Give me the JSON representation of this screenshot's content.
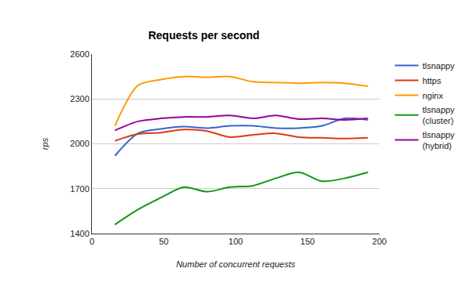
{
  "chart_data": {
    "type": "line",
    "title": "Requests per second",
    "x_label": "Number of concurrent requests",
    "y_label": "rps",
    "x": [
      16,
      32,
      48,
      64,
      80,
      96,
      112,
      128,
      144,
      160,
      176,
      192
    ],
    "series": [
      {
        "name": "tlsnappy",
        "color": "#3366cc",
        "values": [
          1920,
          2070,
          2100,
          2115,
          2105,
          2120,
          2120,
          2105,
          2105,
          2120,
          2170,
          2160
        ]
      },
      {
        "name": "https",
        "color": "#dc3912",
        "values": [
          2020,
          2065,
          2075,
          2095,
          2085,
          2045,
          2060,
          2070,
          2045,
          2040,
          2035,
          2040
        ]
      },
      {
        "name": "nginx",
        "color": "#ff9900",
        "values": [
          2120,
          2390,
          2430,
          2450,
          2445,
          2450,
          2415,
          2410,
          2405,
          2410,
          2405,
          2385
        ]
      },
      {
        "name": "tlsnappy (cluster)",
        "color": "#109618",
        "values": [
          1460,
          1560,
          1640,
          1710,
          1680,
          1710,
          1720,
          1770,
          1810,
          1750,
          1770,
          1810
        ]
      },
      {
        "name": "tlsnappy (hybrid)",
        "color": "#990099",
        "values": [
          2090,
          2150,
          2170,
          2180,
          2180,
          2190,
          2170,
          2190,
          2165,
          2170,
          2160,
          2170
        ]
      }
    ],
    "xlim": [
      0,
      200
    ],
    "xticks": [
      0,
      50,
      100,
      150,
      200
    ],
    "ylim": [
      1400,
      2600
    ],
    "yticks": [
      1400,
      1700,
      2000,
      2300,
      2600
    ],
    "grid": true,
    "legend": "right",
    "line_style": "smooth"
  }
}
